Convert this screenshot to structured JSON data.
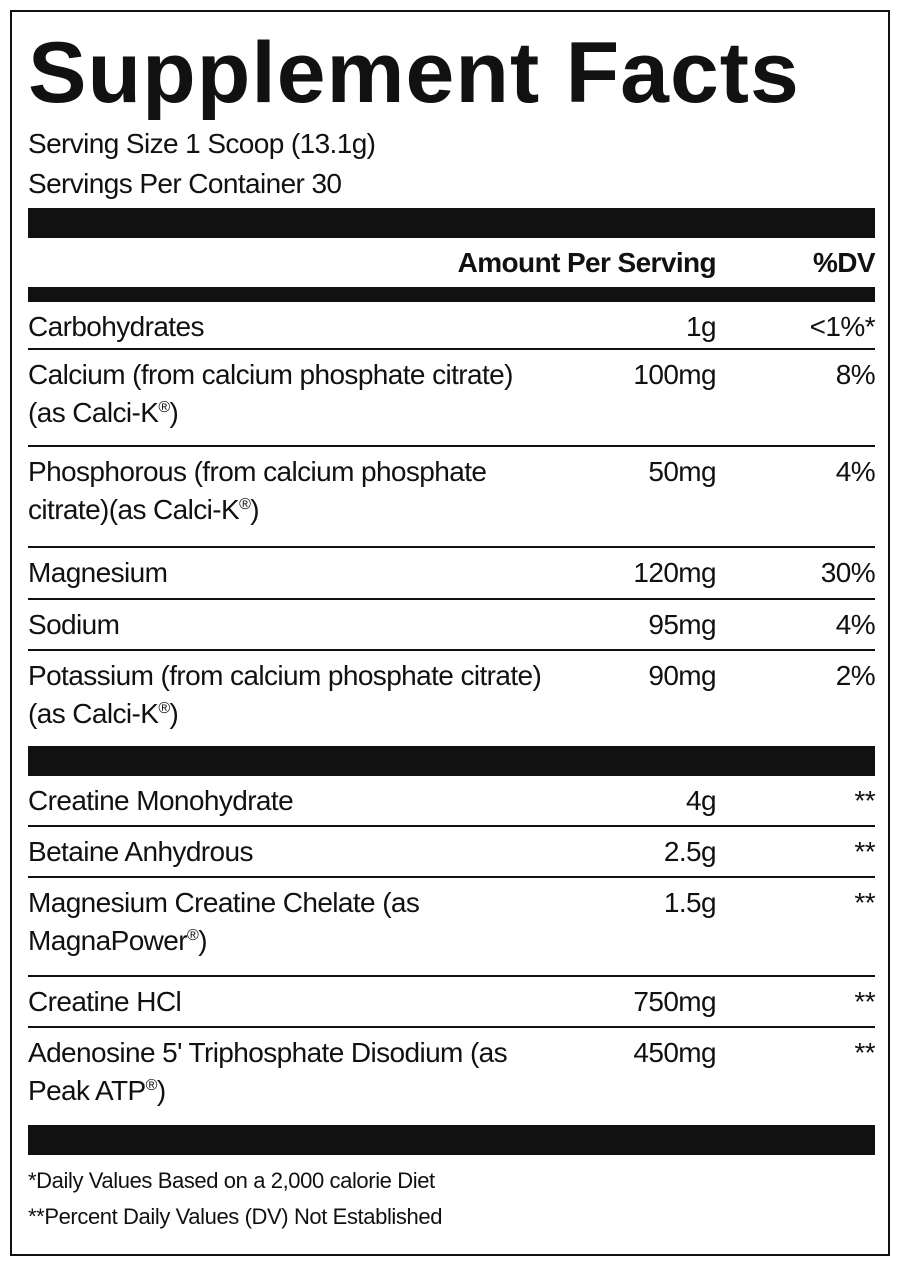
{
  "title": "Supplement Facts",
  "serving_size": "Serving Size 1 Scoop (13.1g)",
  "servings_per_container": "Servings Per Container 30",
  "header": {
    "amount": "Amount Per Serving",
    "dv": "%DV"
  },
  "group1": [
    {
      "name": "Carbohydrates",
      "amount": "1g",
      "dv": "<1%*"
    },
    {
      "name": "Calcium (from calcium phosphate citrate)(as Calci-K",
      "reg": "®",
      "suffix": ")",
      "amount": "100mg",
      "dv": "8%"
    },
    {
      "name": "Phosphorous (from calcium phosphate citrate)(as Calci-K",
      "reg": "®",
      "suffix": ")",
      "amount": "50mg",
      "dv": "4%"
    },
    {
      "name": "Magnesium",
      "amount": "120mg",
      "dv": "30%"
    },
    {
      "name": "Sodium",
      "amount": "95mg",
      "dv": "4%"
    },
    {
      "name": "Potassium (from calcium phosphate citrate)(as Calci-K",
      "reg": "®",
      "suffix": ")",
      "amount": "90mg",
      "dv": "2%"
    }
  ],
  "group2": [
    {
      "name": "Creatine Monohydrate",
      "amount": "4g",
      "dv": "**"
    },
    {
      "name": "Betaine Anhydrous",
      "amount": "2.5g",
      "dv": "**"
    },
    {
      "name": "Magnesium Creatine Chelate (as MagnaPower",
      "reg": "®",
      "suffix": ")",
      "amount": "1.5g",
      "dv": "**"
    },
    {
      "name": "Creatine HCl",
      "amount": "750mg",
      "dv": "**"
    },
    {
      "name": "Adenosine 5' Triphosphate Disodium (as Peak ATP",
      "reg": "®",
      "suffix": ")",
      "amount": "450mg",
      "dv": "**"
    }
  ],
  "footnotes": [
    "*Daily Values Based on a 2,000 calorie Diet",
    "**Percent Daily Values (DV) Not Established"
  ]
}
